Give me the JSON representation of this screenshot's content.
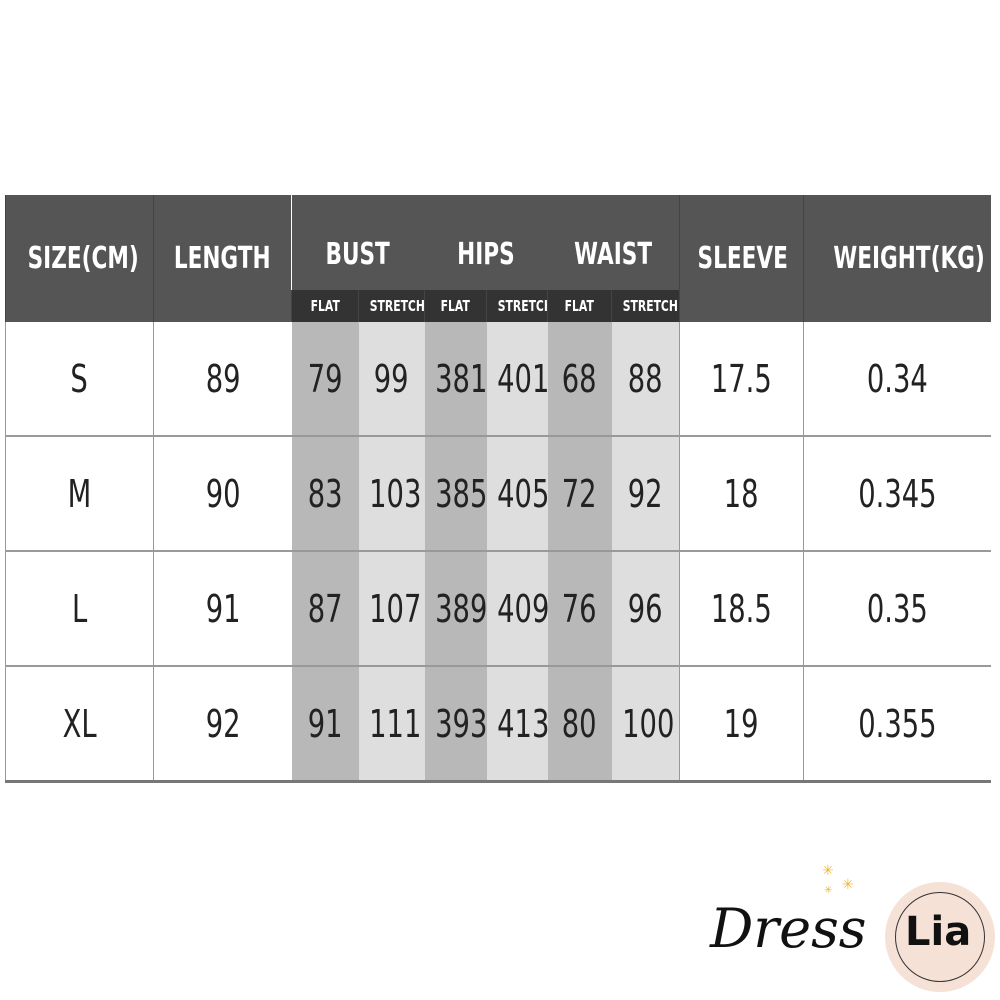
{
  "headers": {
    "size": "SIZE(CM)",
    "length": "LENGTH",
    "bust": "BUST",
    "hips": "HIPS",
    "waist": "WAIST",
    "sleeve": "SLEEVE",
    "weight": "WEIGHT(KG)",
    "flat": "FLAT",
    "stretch": "STRETCH"
  },
  "rows": [
    {
      "size": "S",
      "length": "89",
      "bust_flat": "79",
      "bust_stretch": "99",
      "hips_flat": "381",
      "hips_stretch": "401",
      "waist_flat": "68",
      "waist_stretch": "88",
      "sleeve": "17.5",
      "weight": "0.34"
    },
    {
      "size": "M",
      "length": "90",
      "bust_flat": "83",
      "bust_stretch": "103",
      "hips_flat": "385",
      "hips_stretch": "405",
      "waist_flat": "72",
      "waist_stretch": "92",
      "sleeve": "18",
      "weight": "0.345"
    },
    {
      "size": "L",
      "length": "91",
      "bust_flat": "87",
      "bust_stretch": "107",
      "hips_flat": "389",
      "hips_stretch": "409",
      "waist_flat": "76",
      "waist_stretch": "96",
      "sleeve": "18.5",
      "weight": "0.35"
    },
    {
      "size": "XL",
      "length": "92",
      "bust_flat": "91",
      "bust_stretch": "111",
      "hips_flat": "393",
      "hips_stretch": "413",
      "waist_flat": "80",
      "waist_stretch": "100",
      "sleeve": "19",
      "weight": "0.355"
    }
  ],
  "logo": {
    "script_text": "Dress",
    "block_text": "Lia"
  },
  "colors": {
    "header": "#555555",
    "subheader": "#333333",
    "flat_col": "#b8b8b8",
    "stretch_col": "#dedede",
    "logo_circle": "#f6e1d6",
    "logo_star": "#f2b534"
  }
}
